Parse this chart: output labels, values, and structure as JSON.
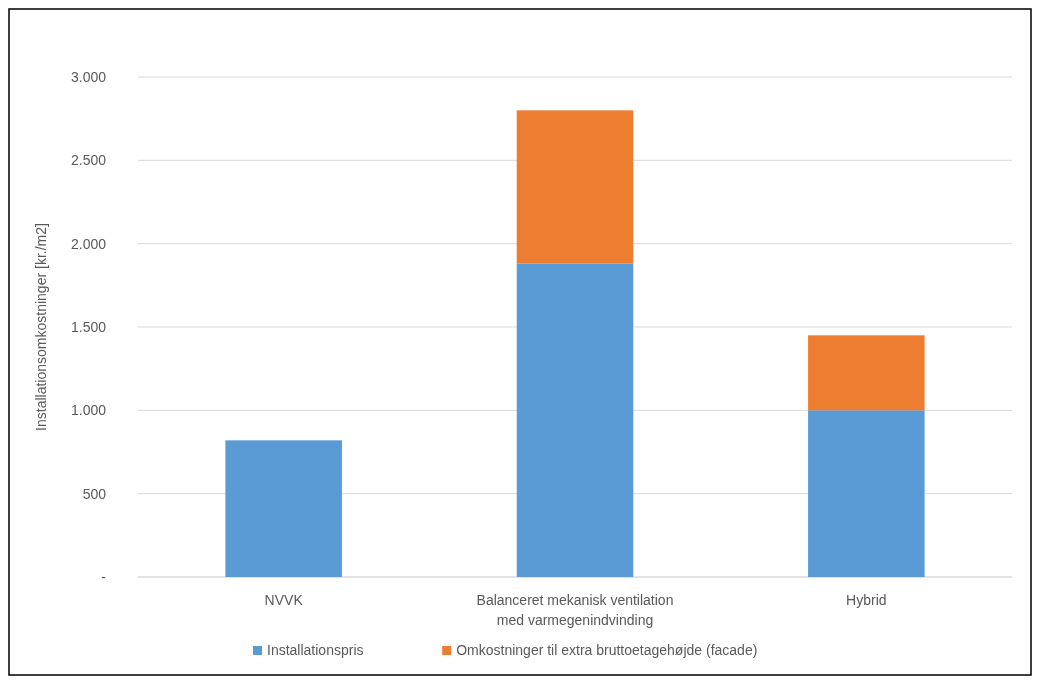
{
  "chart_data": {
    "type": "bar",
    "stacked": true,
    "ylabel": "Installationsomkostninger [kr./m2]",
    "categories": [
      "NVVK",
      "Balanceret mekanisk ventilation\nmed varmegenindvinding",
      "Hybrid"
    ],
    "series": [
      {
        "name": "Installationspris",
        "color": "#5b9bd5",
        "values": [
          820,
          1880,
          1000
        ]
      },
      {
        "name": "Omkostninger til extra bruttoetagehøjde (facade)",
        "color": "#ed7d31",
        "values": [
          0,
          920,
          450
        ]
      }
    ],
    "ylim": [
      0,
      3000
    ],
    "yticks": [
      {
        "value": 0,
        "label": "-"
      },
      500,
      {
        "value": 1000,
        "label": "1.000"
      },
      {
        "value": 1500,
        "label": "1.500"
      },
      {
        "value": 2000,
        "label": "2.000"
      },
      {
        "value": 2500,
        "label": "2.500"
      },
      {
        "value": 3000,
        "label": "3.000"
      }
    ],
    "grid": "y",
    "legend": "bottom"
  }
}
